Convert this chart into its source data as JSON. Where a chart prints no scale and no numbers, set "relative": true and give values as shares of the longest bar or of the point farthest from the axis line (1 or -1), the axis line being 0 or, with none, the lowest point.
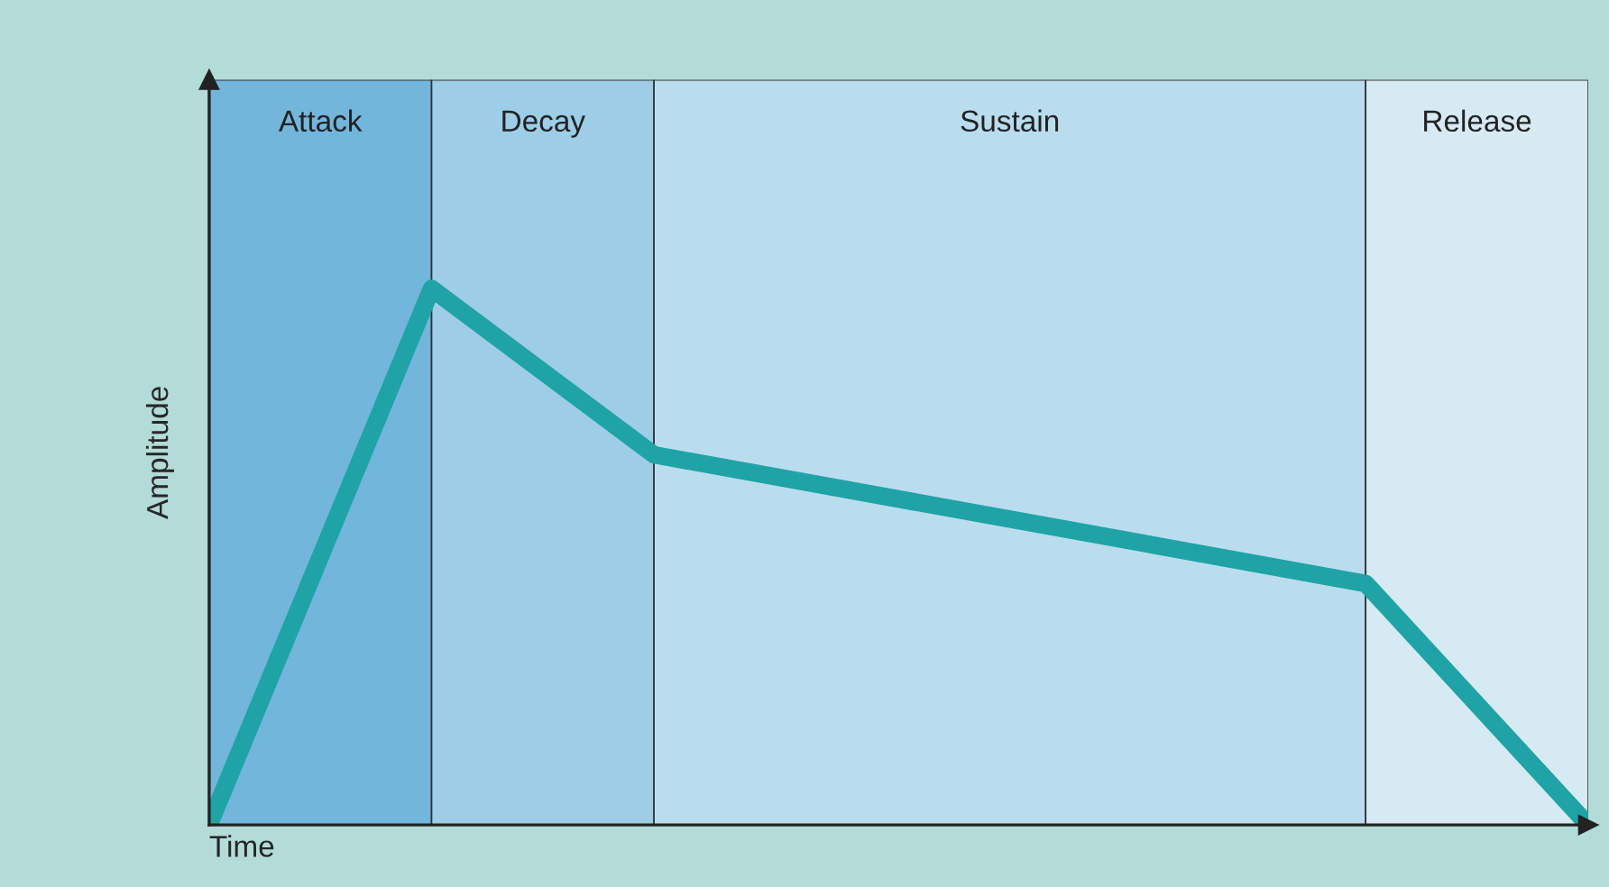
{
  "chart_data": {
    "type": "line",
    "relative": true,
    "xlabel": "Time",
    "ylabel": "Amplitude",
    "categories": [
      null,
      null,
      null,
      null,
      null,
      null,
      null,
      null,
      null,
      null,
      null,
      null,
      null,
      null,
      null,
      null,
      null,
      null,
      null,
      null,
      null,
      null,
      null,
      null,
      null,
      null,
      null,
      null,
      null,
      null,
      null,
      null
    ],
    "series": [
      {
        "color": "#1fa3a6",
        "values": [
          0,
          null,
          null,
          null,
          null,
          1,
          null,
          null,
          null,
          null,
          0.69,
          null,
          null,
          null,
          null,
          null,
          null,
          null,
          null,
          null,
          null,
          null,
          null,
          null,
          null,
          null,
          0.45,
          null,
          null,
          null,
          null,
          0
        ]
      }
    ],
    "annotations": [
      "Attack",
      "Decay",
      "Sustain",
      "Release"
    ],
    "tick_labels": false
  }
}
